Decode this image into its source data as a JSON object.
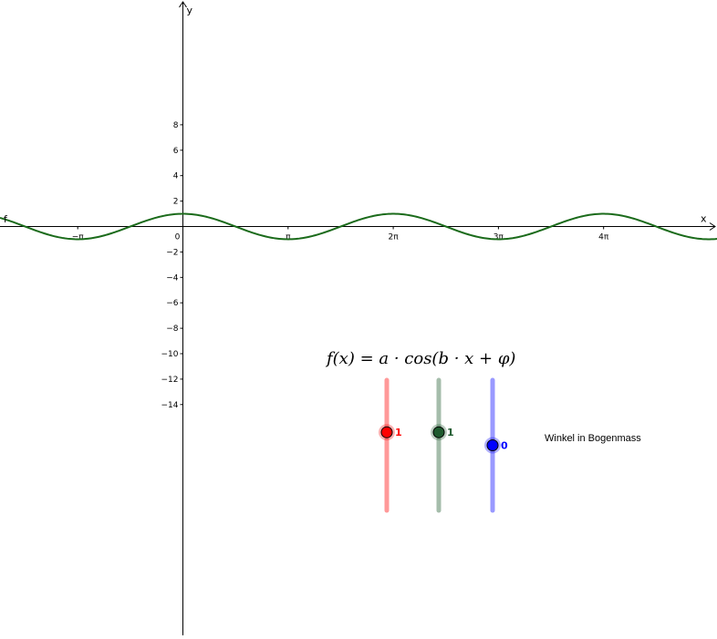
{
  "function_label": "f",
  "formula_text": "f(x) = a · cos(b · x + φ)",
  "caption": "Winkel in Bogenmass",
  "colors": {
    "curve": "#1b6b1b",
    "slider_a": "#ff0000",
    "slider_b": "#1e5a2e",
    "slider_phi": "#0000ff"
  },
  "chart_data": {
    "type": "line",
    "title": "",
    "xlabel": "x",
    "ylabel": "y",
    "xlim": [
      -6.3,
      18.6
    ],
    "ylim": [
      -16.2,
      8.8
    ],
    "grid": false,
    "x_ticks": [
      {
        "value": -3.14159,
        "label": "−π"
      },
      {
        "value": 3.14159,
        "label": "π"
      },
      {
        "value": 6.28318,
        "label": "2π"
      },
      {
        "value": 9.42478,
        "label": "3π"
      },
      {
        "value": 12.56637,
        "label": "4π"
      }
    ],
    "origin_label": "0",
    "y_ticks": [
      {
        "value": 8,
        "label": "8"
      },
      {
        "value": 6,
        "label": "6"
      },
      {
        "value": 4,
        "label": "4"
      },
      {
        "value": 2,
        "label": "2"
      },
      {
        "value": -2,
        "label": "−2"
      },
      {
        "value": -4,
        "label": "−4"
      },
      {
        "value": -6,
        "label": "−6"
      },
      {
        "value": -8,
        "label": "−8"
      },
      {
        "value": -10,
        "label": "−10"
      },
      {
        "value": -12,
        "label": "−12"
      },
      {
        "value": -14,
        "label": "−14"
      }
    ],
    "series": [
      {
        "name": "f",
        "function": "a·cos(b·x+φ)",
        "a": 1,
        "b": 1,
        "phi": 0
      }
    ]
  },
  "sliders": [
    {
      "name": "a",
      "value": 1,
      "value_label": "1",
      "min": -5,
      "max": 5
    },
    {
      "name": "b",
      "value": 1,
      "value_label": "1",
      "min": -5,
      "max": 5
    },
    {
      "name": "phi",
      "value": 0,
      "value_label": "0",
      "min": -4,
      "max": 4
    }
  ]
}
